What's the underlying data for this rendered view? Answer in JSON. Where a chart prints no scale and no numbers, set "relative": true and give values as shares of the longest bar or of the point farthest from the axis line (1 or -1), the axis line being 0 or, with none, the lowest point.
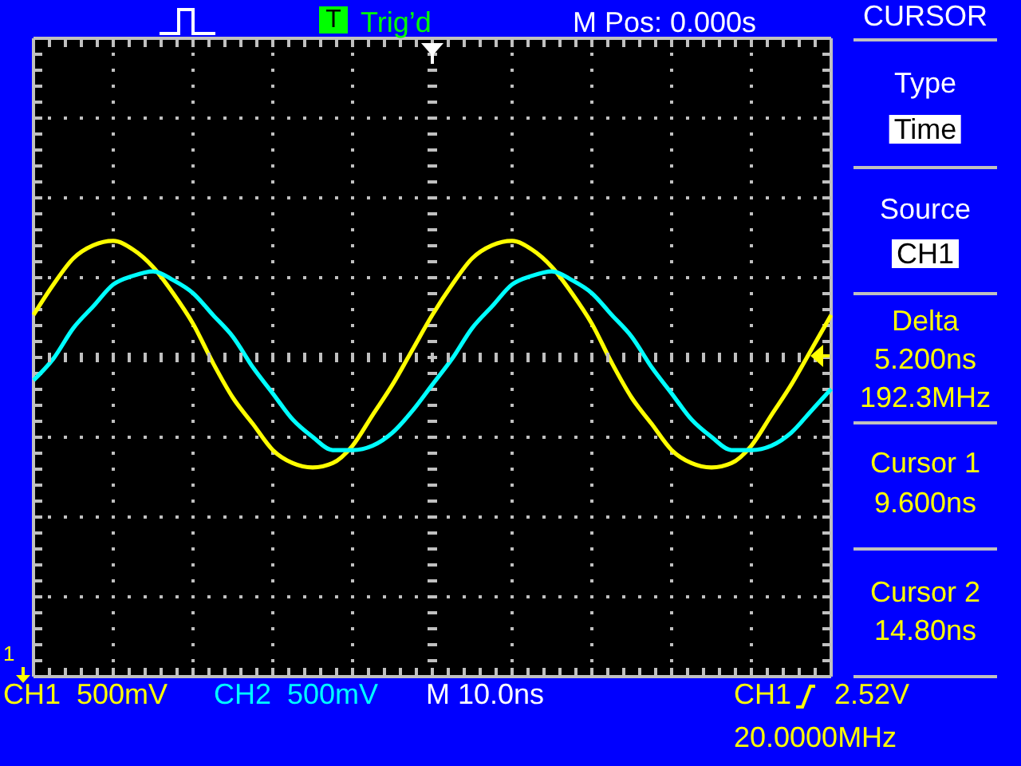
{
  "chart_data": {
    "type": "line",
    "relative": true,
    "categories": [
      null,
      null,
      null,
      null,
      null,
      null,
      null,
      null,
      null,
      null,
      null,
      null,
      null,
      null,
      null,
      null,
      null,
      null,
      null,
      null,
      null,
      null,
      null,
      null,
      null,
      null,
      null,
      null,
      null,
      null,
      null,
      null,
      null,
      null,
      null,
      null,
      null,
      null,
      null,
      null,
      null
    ],
    "grid": true,
    "marker": "none",
    "legend": "bottom left",
    "series": [
      {
        "name": "CH1",
        "color": "#ffff00",
        "values": [
          0.83,
          0.9,
          0.96,
          0.99,
          1,
          0.98,
          0.94,
          0.88,
          0.81,
          0.72,
          0.64,
          0.58,
          0.52,
          0.49,
          0.48,
          0.49,
          0.53,
          0.6,
          0.67,
          0.75,
          0.83,
          0.9,
          0.96,
          0.99,
          1,
          0.98,
          0.94,
          0.88,
          0.81,
          0.72,
          0.64,
          0.58,
          0.52,
          0.49,
          0.48,
          0.49,
          0.53,
          0.6,
          0.67,
          0.75,
          0.83
        ]
      },
      {
        "name": "CH2",
        "color": "#00ffff",
        "values": [
          0.68,
          0.73,
          0.8,
          0.85,
          0.9,
          0.92,
          0.93,
          0.91,
          0.88,
          0.83,
          0.78,
          0.71,
          0.65,
          0.59,
          0.55,
          0.52,
          0.52,
          0.53,
          0.56,
          0.61,
          0.67,
          0.73,
          0.8,
          0.85,
          0.9,
          0.92,
          0.93,
          0.91,
          0.88,
          0.83,
          0.78,
          0.71,
          0.65,
          0.59,
          0.55,
          0.52,
          0.52,
          0.53,
          0.56,
          0.61,
          0.66
        ]
      }
    ],
    "annotations": [
      "Trig’d",
      "M Pos: 0.000s",
      "CURSOR",
      "Type",
      "Time",
      "Source",
      "CH1",
      "Delta",
      "5.200ns",
      "192.3MHz",
      "Cursor 1",
      "9.600ns",
      "Cursor 2",
      "14.80ns",
      "M 10.0ns",
      "CH1",
      "2.52V",
      "20.0000MHz",
      "T",
      "1",
      "500mV",
      "500mV"
    ]
  }
}
